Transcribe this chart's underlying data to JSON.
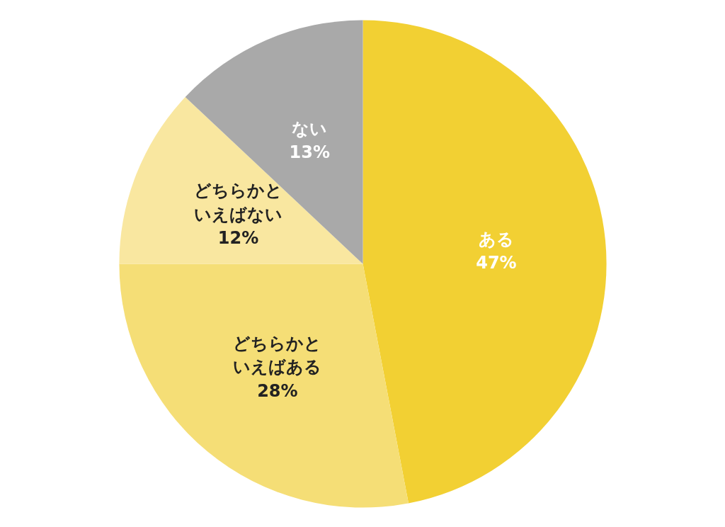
{
  "chart_data": {
    "type": "pie",
    "categories": [
      "ある",
      "どちらかといえばある",
      "どちらかといえばない",
      "ない"
    ],
    "values": [
      47,
      28,
      12,
      13
    ],
    "value_labels": [
      "47%",
      "28%",
      "12%",
      "13%"
    ],
    "colors": [
      "#f2d033",
      "#f5de76",
      "#f9e7a0",
      "#a9a9a9"
    ]
  }
}
